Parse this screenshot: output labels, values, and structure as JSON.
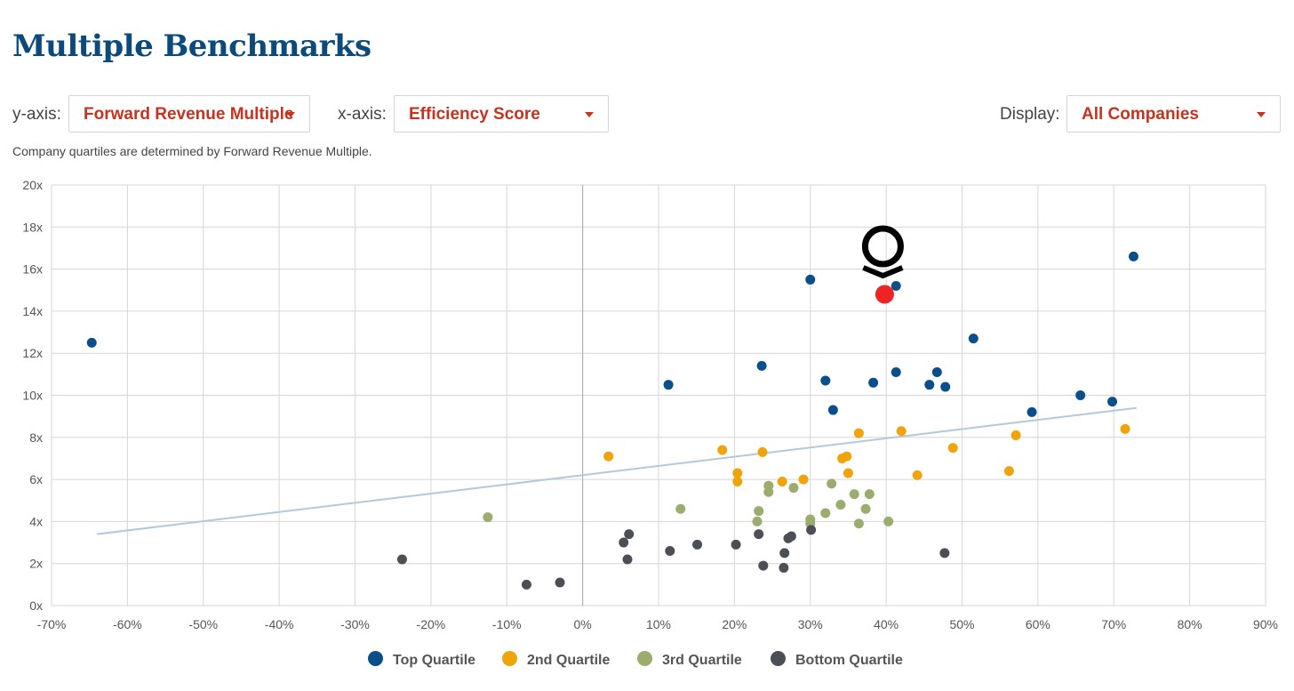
{
  "page": {
    "title": "Multiple Benchmarks",
    "note": "Company quartiles are determined by Forward Revenue Multiple."
  },
  "controls": {
    "y_label": "y-axis:",
    "y_value": "Forward Revenue Multiple",
    "x_label": "x-axis:",
    "x_value": "Efficiency Score",
    "display_label": "Display:",
    "display_value": "All Companies"
  },
  "colors": {
    "title": "#0b4a7c",
    "accent": "#c8321e",
    "top": "#0b4f8a",
    "second": "#f0a30a",
    "third": "#9aac6e",
    "bottom": "#4c4f55",
    "highlight": "#ee2323",
    "trend": "#b3c9da",
    "grid": "#d6d6d6"
  },
  "icons": {
    "highlight_marker": "location-pin-icon"
  },
  "chart_data": {
    "type": "scatter",
    "xlim": [
      -70,
      90
    ],
    "ylim": [
      0,
      20
    ],
    "x_ticks": [
      "-70%",
      "-60%",
      "-50%",
      "-40%",
      "-30%",
      "-20%",
      "-10%",
      "0%",
      "10%",
      "20%",
      "30%",
      "40%",
      "50%",
      "60%",
      "70%",
      "80%",
      "90%"
    ],
    "y_ticks": [
      "0x",
      "2x",
      "4x",
      "6x",
      "8x",
      "10x",
      "12x",
      "14x",
      "16x",
      "18x",
      "20x"
    ],
    "grid": true,
    "legend_position": "bottom",
    "trendline": [
      [
        -64,
        3.4
      ],
      [
        73,
        9.4
      ]
    ],
    "highlight": [
      39.8,
      14.8
    ],
    "series": [
      {
        "name": "Top Quartile",
        "color_key": "top",
        "points": [
          [
            -64.7,
            12.5
          ],
          [
            30,
            15.5
          ],
          [
            41.3,
            15.2
          ],
          [
            72.6,
            16.6
          ],
          [
            51.5,
            12.7
          ],
          [
            11.3,
            10.5
          ],
          [
            23.6,
            11.4
          ],
          [
            32,
            10.7
          ],
          [
            38.3,
            10.6
          ],
          [
            41.3,
            11.1
          ],
          [
            46.7,
            11.1
          ],
          [
            45.7,
            10.5
          ],
          [
            47.8,
            10.4
          ],
          [
            33,
            9.3
          ],
          [
            59.2,
            9.2
          ],
          [
            65.6,
            10
          ],
          [
            69.8,
            9.7
          ]
        ]
      },
      {
        "name": "2nd Quartile",
        "color_key": "second",
        "points": [
          [
            3.4,
            7.1
          ],
          [
            18.4,
            7.4
          ],
          [
            23.7,
            7.3
          ],
          [
            20.4,
            6.3
          ],
          [
            20.4,
            5.9
          ],
          [
            26.3,
            5.9
          ],
          [
            29.1,
            6
          ],
          [
            34.2,
            7
          ],
          [
            34.8,
            7.1
          ],
          [
            35,
            6.3
          ],
          [
            36.4,
            8.2
          ],
          [
            42,
            8.3
          ],
          [
            44.1,
            6.2
          ],
          [
            48.8,
            7.5
          ],
          [
            56.2,
            6.4
          ],
          [
            57.1,
            8.1
          ],
          [
            71.5,
            8.4
          ]
        ]
      },
      {
        "name": "3rd Quartile",
        "color_key": "third",
        "points": [
          [
            -12.5,
            4.2
          ],
          [
            12.9,
            4.6
          ],
          [
            23.2,
            4.5
          ],
          [
            24.5,
            5.7
          ],
          [
            24.5,
            5.4
          ],
          [
            27.8,
            5.6
          ],
          [
            32.8,
            5.8
          ],
          [
            35.8,
            5.3
          ],
          [
            37.8,
            5.3
          ],
          [
            37.3,
            4.6
          ],
          [
            34,
            4.8
          ],
          [
            32,
            4.4
          ],
          [
            30,
            4.1
          ],
          [
            30,
            3.9
          ],
          [
            23,
            4
          ],
          [
            36.4,
            3.9
          ],
          [
            40.3,
            4
          ]
        ]
      },
      {
        "name": "Bottom Quartile",
        "color_key": "bottom",
        "points": [
          [
            -23.8,
            2.2
          ],
          [
            -7.4,
            1
          ],
          [
            -3,
            1.1
          ],
          [
            5.4,
            3
          ],
          [
            6.1,
            3.4
          ],
          [
            5.9,
            2.2
          ],
          [
            11.5,
            2.6
          ],
          [
            15.1,
            2.9
          ],
          [
            20.2,
            2.9
          ],
          [
            23.2,
            3.4
          ],
          [
            23.8,
            1.9
          ],
          [
            26.5,
            1.8
          ],
          [
            26.6,
            2.5
          ],
          [
            27.1,
            3.2
          ],
          [
            27.5,
            3.3
          ],
          [
            30.1,
            3.6
          ],
          [
            47.7,
            2.5
          ]
        ]
      }
    ]
  }
}
